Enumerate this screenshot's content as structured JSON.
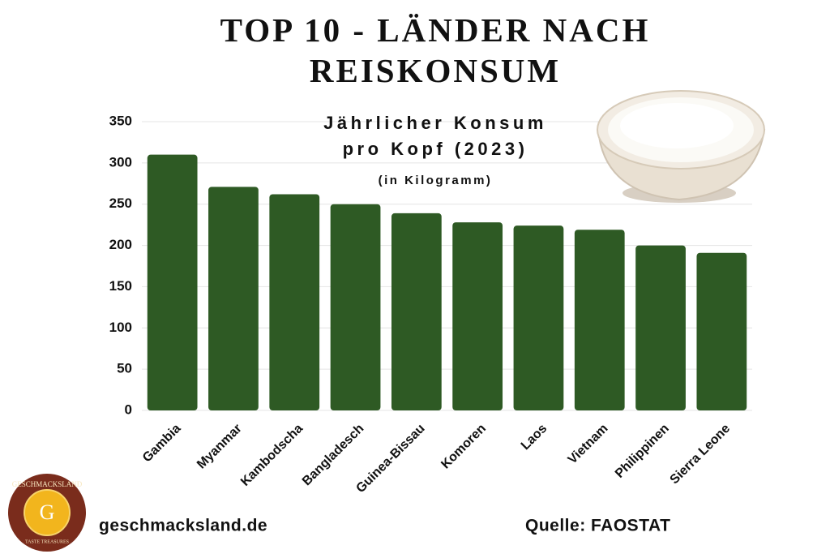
{
  "chart_data": {
    "type": "bar",
    "title": "TOP 10 - LÄNDER NACH REISKONSUM",
    "subtitle": "Jährlicher Konsum pro Kopf (2023)",
    "unit": "(in Kilogramm)",
    "categories": [
      "Gambia",
      "Myanmar",
      "Kambodscha",
      "Bangladesch",
      "Guinea-Bissau",
      "Komoren",
      "Laos",
      "Vietnam",
      "Philippinen",
      "Sierra Leone"
    ],
    "values": [
      310,
      271,
      262,
      250,
      239,
      228,
      224,
      219,
      200,
      191
    ],
    "color": "#2e5a24",
    "ylim": [
      0,
      350
    ],
    "yticks": [
      0,
      50,
      100,
      150,
      200,
      250,
      300,
      350
    ],
    "grid": true
  },
  "footer": {
    "website": "geschmacksland.de",
    "source": "Quelle: FAOSTAT"
  },
  "logo": {
    "name": "GESCHMACKSLAND",
    "letter": "G",
    "tagline": "TASTE TREASURES"
  }
}
